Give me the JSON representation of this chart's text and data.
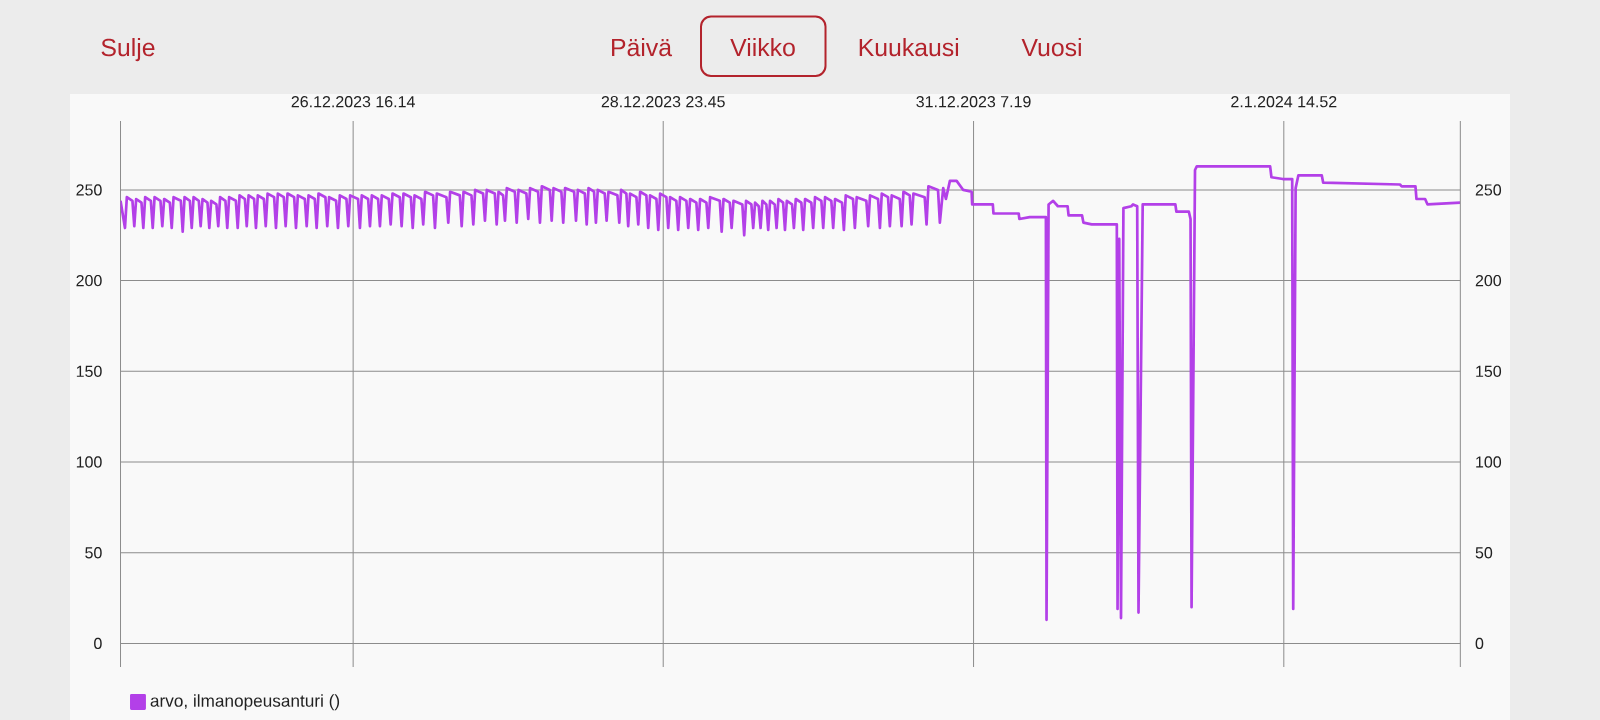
{
  "chart_data": {
    "type": "line",
    "annotations": [
      "Sulje",
      "Päivä",
      "Viikko",
      "Kuukausi",
      "Vuosi"
    ],
    "x": [
      "2023-12-24T22:35",
      "2023-12-24T23:23",
      "2023-12-24T23:43",
      "2023-12-25T00:43",
      "2023-12-25T01:03",
      "2023-12-25T01:23",
      "2023-12-25T02:20",
      "2023-12-25T02:40",
      "2023-12-25T03:00",
      "2023-12-25T04:01",
      "2023-12-25T04:21",
      "2023-12-25T04:41",
      "2023-12-25T05:44",
      "2023-12-25T06:04",
      "2023-12-25T06:24",
      "2023-12-25T07:25",
      "2023-12-25T07:45",
      "2023-12-25T08:05",
      "2023-12-25T09:23",
      "2023-12-25T09:43",
      "2023-12-25T10:03",
      "2023-12-25T11:00",
      "2023-12-25T11:20",
      "2023-12-25T11:40",
      "2023-12-25T12:36",
      "2023-12-25T12:56",
      "2023-12-25T13:16",
      "2023-12-25T14:09",
      "2023-12-25T14:29",
      "2023-12-25T14:49",
      "2023-12-25T15:45",
      "2023-12-25T16:05",
      "2023-12-25T16:25",
      "2023-12-25T17:22",
      "2023-12-25T17:42",
      "2023-12-25T18:02",
      "2023-12-25T19:14",
      "2023-12-25T19:34",
      "2023-12-25T19:54",
      "2023-12-25T20:51",
      "2023-12-25T21:11",
      "2023-12-25T21:31",
      "2023-12-25T22:30",
      "2023-12-25T22:50",
      "2023-12-25T23:10",
      "2023-12-26T00:15",
      "2023-12-26T00:35",
      "2023-12-26T00:55",
      "2023-12-26T02:05",
      "2023-12-26T02:25",
      "2023-12-26T02:45",
      "2023-12-26T03:49",
      "2023-12-26T04:09",
      "2023-12-26T04:29",
      "2023-12-26T05:40",
      "2023-12-26T06:00",
      "2023-12-26T06:20",
      "2023-12-26T07:35",
      "2023-12-26T07:55",
      "2023-12-26T08:15",
      "2023-12-26T09:22",
      "2023-12-26T09:42",
      "2023-12-26T10:02",
      "2023-12-26T11:16",
      "2023-12-26T11:36",
      "2023-12-26T11:56",
      "2023-12-26T13:11",
      "2023-12-26T13:31",
      "2023-12-26T13:51",
      "2023-12-26T15:02",
      "2023-12-26T15:22",
      "2023-12-26T15:42",
      "2023-12-26T17:07",
      "2023-12-26T17:27",
      "2023-12-26T17:47",
      "2023-12-26T18:55",
      "2023-12-26T19:15",
      "2023-12-26T19:35",
      "2023-12-26T20:42",
      "2023-12-26T21:02",
      "2023-12-26T21:22",
      "2023-12-26T22:37",
      "2023-12-26T22:57",
      "2023-12-26T23:17",
      "2023-12-27T00:35",
      "2023-12-27T00:55",
      "2023-12-27T01:15",
      "2023-12-27T02:34",
      "2023-12-27T02:54",
      "2023-12-27T03:14",
      "2023-12-27T04:27",
      "2023-12-27T04:47",
      "2023-12-27T05:07",
      "2023-12-27T06:33",
      "2023-12-27T06:53",
      "2023-12-27T07:13",
      "2023-12-27T08:56",
      "2023-12-27T09:16",
      "2023-12-27T09:36",
      "2023-12-27T11:20",
      "2023-12-27T11:40",
      "2023-12-27T12:00",
      "2023-12-27T13:25",
      "2023-12-27T13:45",
      "2023-12-27T14:05",
      "2023-12-27T15:30",
      "2023-12-27T15:50",
      "2023-12-27T16:10",
      "2023-12-27T17:36",
      "2023-12-27T17:56",
      "2023-12-27T18:16",
      "2023-12-27T19:05",
      "2023-12-27T19:25",
      "2023-12-27T19:45",
      "2023-12-27T21:11",
      "2023-12-27T21:31",
      "2023-12-27T21:51",
      "2023-12-27T23:15",
      "2023-12-27T23:35",
      "2023-12-27T23:55",
      "2023-12-28T01:21",
      "2023-12-28T01:41",
      "2023-12-28T02:01",
      "2023-12-28T03:27",
      "2023-12-28T03:47",
      "2023-12-28T04:07",
      "2023-12-28T05:31",
      "2023-12-28T05:51",
      "2023-12-28T06:11",
      "2023-12-28T07:48",
      "2023-12-28T08:08",
      "2023-12-28T08:28",
      "2023-12-28T09:43",
      "2023-12-28T10:03",
      "2023-12-28T10:23",
      "2023-12-28T11:22",
      "2023-12-28T11:42",
      "2023-12-28T12:02",
      "2023-12-28T13:17",
      "2023-12-28T13:37",
      "2023-12-28T13:57",
      "2023-12-28T15:33",
      "2023-12-28T15:53",
      "2023-12-28T16:13",
      "2023-12-28T17:09",
      "2023-12-28T17:29",
      "2023-12-28T17:49",
      "2023-12-28T18:57",
      "2023-12-28T19:17",
      "2023-12-28T19:37",
      "2023-12-28T20:44",
      "2023-12-28T21:04",
      "2023-12-28T21:24",
      "2023-12-28T22:32",
      "2023-12-28T22:52",
      "2023-12-28T23:12",
      "2023-12-29T00:19",
      "2023-12-29T00:39",
      "2023-12-29T00:59",
      "2023-12-29T02:06",
      "2023-12-29T02:26",
      "2023-12-29T02:46",
      "2023-12-29T03:54",
      "2023-12-29T04:14",
      "2023-12-29T04:34",
      "2023-12-29T05:41",
      "2023-12-29T06:01",
      "2023-12-29T06:21",
      "2023-12-29T07:29",
      "2023-12-29T07:49",
      "2023-12-29T08:09",
      "2023-12-29T09:53",
      "2023-12-29T10:13",
      "2023-12-29T10:33",
      "2023-12-29T11:40",
      "2023-12-29T12:00",
      "2023-12-29T12:20",
      "2023-12-29T13:55",
      "2023-12-29T14:15",
      "2023-12-29T14:35",
      "2023-12-29T15:32",
      "2023-12-29T15:52",
      "2023-12-29T16:12",
      "2023-12-29T16:51",
      "2023-12-29T17:11",
      "2023-12-29T17:31",
      "2023-12-29T18:13",
      "2023-12-29T18:33",
      "2023-12-29T18:53",
      "2023-12-29T19:43",
      "2023-12-29T20:03",
      "2023-12-29T20:23",
      "2023-12-29T21:13",
      "2023-12-29T21:33",
      "2023-12-29T21:53",
      "2023-12-29T22:49",
      "2023-12-29T23:09",
      "2023-12-29T23:29",
      "2023-12-30T00:29",
      "2023-12-30T00:49",
      "2023-12-30T01:09",
      "2023-12-30T02:16",
      "2023-12-30T02:36",
      "2023-12-30T02:56",
      "2023-12-30T04:04",
      "2023-12-30T04:24",
      "2023-12-30T04:44",
      "2023-12-30T05:51",
      "2023-12-30T06:11",
      "2023-12-30T06:31",
      "2023-12-30T07:46",
      "2023-12-30T08:06",
      "2023-12-30T08:26",
      "2023-12-30T09:44",
      "2023-12-30T10:04",
      "2023-12-30T10:24",
      "2023-12-30T12:07",
      "2023-12-30T12:27",
      "2023-12-30T12:47",
      "2023-12-30T14:13",
      "2023-12-30T14:33",
      "2023-12-30T14:53",
      "2023-12-30T16:00",
      "2023-12-30T16:20",
      "2023-12-30T16:40",
      "2023-12-30T18:06",
      "2023-12-30T18:26",
      "2023-12-30T18:46",
      "2023-12-30T19:53",
      "2023-12-30T20:13",
      "2023-12-30T20:33",
      "2023-12-30T22:34",
      "2023-12-30T22:54",
      "2023-12-30T23:14",
      "2023-12-31T00:57",
      "2023-12-31T01:17",
      "2023-12-31T01:53",
      "2023-12-31T02:22",
      "2023-12-31T03:05",
      "2023-12-31T04:17",
      "2023-12-31T05:28",
      "2023-12-31T06:58",
      "2023-12-31T07:04",
      "2023-12-31T10:46",
      "2023-12-31T10:53",
      "2023-12-31T15:24",
      "2023-12-31T15:31",
      "2023-12-31T17:22",
      "2023-12-31T20:16",
      "2023-12-31T20:23",
      "2023-12-31T20:45",
      "2023-12-31T21:34",
      "2023-12-31T22:25",
      "2024-01-01T00:09",
      "2024-01-01T00:20",
      "2024-01-01T02:44",
      "2024-01-01T02:59",
      "2024-01-01T04:28",
      "2024-01-01T08:58",
      "2024-01-01T09:06",
      "2024-01-01T09:24",
      "2024-01-01T09:43",
      "2024-01-01T10:09",
      "2024-01-01T11:34",
      "2024-01-01T11:52",
      "2024-01-01T12:37",
      "2024-01-01T12:51",
      "2024-01-01T13:36",
      "2024-01-01T19:27",
      "2024-01-01T19:38",
      "2024-01-01T21:52",
      "2024-01-01T22:10",
      "2024-01-01T22:21",
      "2024-01-01T22:58",
      "2024-01-01T23:17",
      "2024-01-02T12:25",
      "2024-01-02T12:39",
      "2024-01-02T14:42",
      "2024-01-02T16:22",
      "2024-01-02T16:33",
      "2024-01-02T16:59",
      "2024-01-02T17:28",
      "2024-01-02T21:40",
      "2024-01-02T21:55",
      "2024-01-03T11:40",
      "2024-01-03T11:58",
      "2024-01-03T14:26",
      "2024-01-03T14:37",
      "2024-01-03T16:10",
      "2024-01-03T16:36",
      "2024-01-03T22:28"
    ],
    "series": [
      {
        "name": "arvo, ilmanopeusanturi ()",
        "color": "#b340e8",
        "values": [
          244,
          229,
          246,
          244,
          230,
          245,
          243,
          229,
          246,
          244,
          229,
          246,
          244,
          230,
          245,
          243,
          229,
          246,
          244,
          227,
          246,
          244,
          229,
          246,
          244,
          230,
          245,
          243,
          229,
          244,
          242,
          230,
          246,
          244,
          229,
          246,
          244,
          229,
          247,
          245,
          230,
          247,
          245,
          229,
          247,
          245,
          230,
          248,
          246,
          229,
          248,
          246,
          230,
          248,
          246,
          229,
          247,
          245,
          230,
          247,
          245,
          229,
          248,
          246,
          230,
          246,
          244,
          229,
          247,
          245,
          230,
          247,
          245,
          229,
          247,
          245,
          230,
          247,
          245,
          230,
          247,
          245,
          231,
          248,
          246,
          230,
          248,
          246,
          229,
          247,
          245,
          231,
          249,
          247,
          229,
          248,
          246,
          232,
          249,
          247,
          230,
          249,
          247,
          231,
          250,
          248,
          233,
          250,
          248,
          231,
          249,
          247,
          233,
          251,
          249,
          232,
          250,
          248,
          234,
          251,
          249,
          232,
          252,
          250,
          233,
          251,
          249,
          232,
          251,
          249,
          233,
          250,
          248,
          231,
          251,
          249,
          232,
          250,
          248,
          233,
          249,
          247,
          232,
          250,
          248,
          230,
          248,
          246,
          231,
          249,
          247,
          229,
          247,
          245,
          228,
          248,
          246,
          229,
          246,
          244,
          228,
          246,
          244,
          229,
          245,
          243,
          228,
          245,
          243,
          229,
          246,
          244,
          227,
          245,
          243,
          229,
          244,
          242,
          225,
          244,
          242,
          229,
          243,
          241,
          229,
          244,
          242,
          228,
          244,
          242,
          229,
          245,
          243,
          228,
          244,
          242,
          229,
          245,
          243,
          228,
          245,
          243,
          229,
          246,
          244,
          229,
          246,
          244,
          229,
          245,
          243,
          228,
          247,
          245,
          229,
          246,
          244,
          230,
          247,
          245,
          229,
          248,
          246,
          230,
          247,
          245,
          230,
          249,
          247,
          231,
          248,
          246,
          231,
          252,
          250,
          232,
          251,
          245,
          255,
          255,
          250,
          249,
          242,
          242,
          237,
          237,
          234,
          235,
          235,
          13,
          242,
          244,
          241,
          241,
          236,
          236,
          232,
          231,
          231,
          19,
          223,
          14,
          240,
          241,
          242,
          241,
          17,
          242,
          242,
          238,
          238,
          234,
          20,
          261,
          263,
          263,
          257,
          256,
          256,
          19,
          251,
          258,
          258,
          254,
          253,
          252,
          252,
          245,
          245,
          242,
          243
        ]
      }
    ],
    "xlim": [
      "2023-12-24T22:35",
      "2024-01-03T22:28"
    ],
    "xticks": [
      {
        "value": "2023-12-26T16:14",
        "label": "26.12.2023 16.14"
      },
      {
        "value": "2023-12-28T23:45",
        "label": "28.12.2023 23.45"
      },
      {
        "value": "2023-12-31T07:19",
        "label": "31.12.2023 7.19"
      },
      {
        "value": "2024-01-02T14:52",
        "label": "2.1.2024 14.52"
      }
    ],
    "ylim": [
      -13,
      288
    ],
    "yticks": [
      0,
      50,
      100,
      150,
      200,
      250
    ],
    "y2lim": [
      -13,
      288
    ],
    "y2ticks": [
      0,
      50,
      100,
      150,
      200,
      250
    ],
    "grid": true,
    "legend": "bottom left",
    "line_style": "solid"
  }
}
